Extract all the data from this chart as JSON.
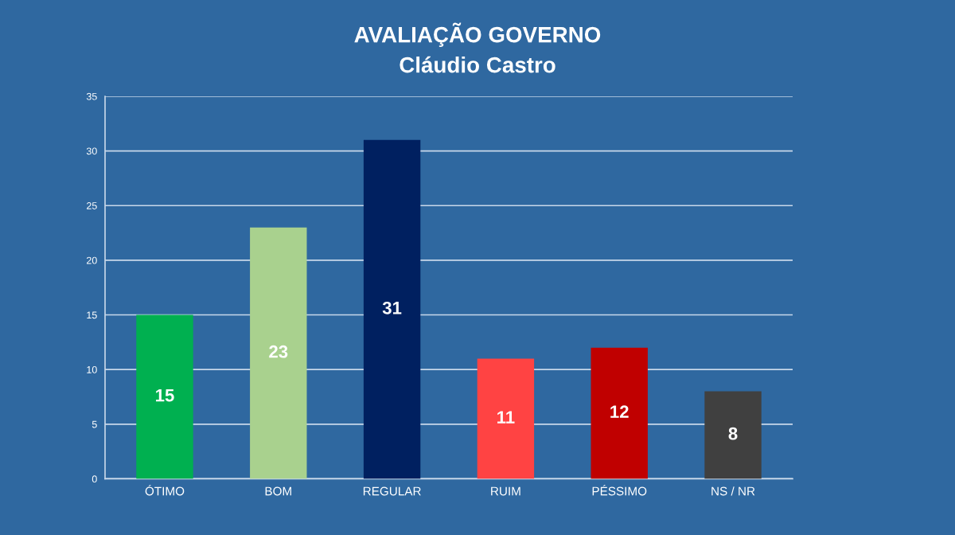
{
  "chart_data": {
    "type": "bar",
    "title": "AVALIAÇÃO GOVERNO",
    "subtitle": "Cláudio Castro",
    "categories": [
      "ÓTIMO",
      "BOM",
      "REGULAR",
      "RUIM",
      "PÉSSIMO",
      "NS / NR"
    ],
    "values": [
      15,
      23,
      31,
      11,
      12,
      8
    ],
    "colors": [
      "#00b050",
      "#a9d18e",
      "#002060",
      "#ff4343",
      "#c00000",
      "#404040"
    ],
    "ylim": [
      0,
      35
    ],
    "yticks": [
      0,
      5,
      10,
      15,
      20,
      25,
      30,
      35
    ],
    "grid": "y",
    "data_labels": true
  }
}
